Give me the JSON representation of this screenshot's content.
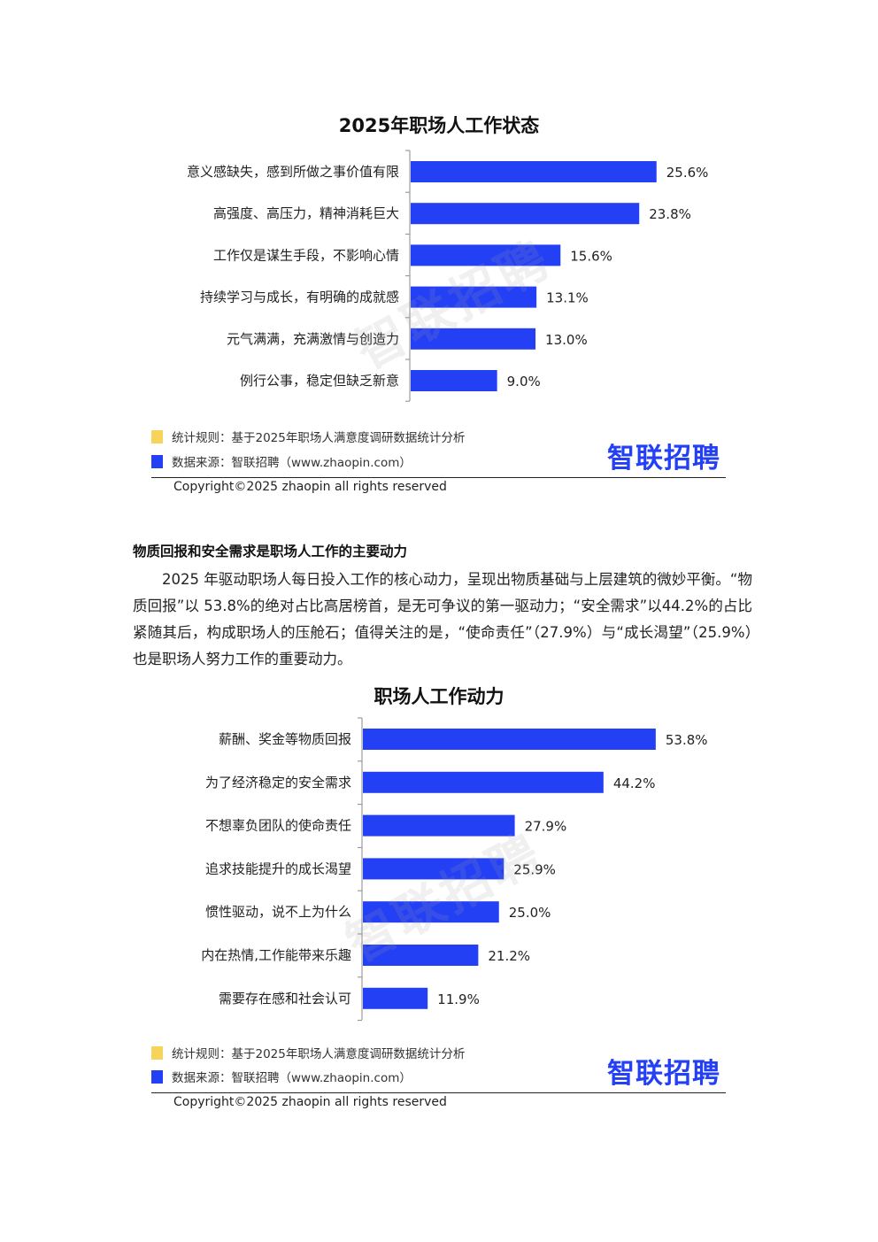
{
  "watermark": "智联招聘",
  "chart_data": [
    {
      "type": "bar",
      "orientation": "horizontal",
      "title": "2025年职场人工作状态",
      "categories": [
        "意义感缺失，感到所做之事价值有限",
        "高强度、高压力，精神消耗巨大",
        "工作仅是谋生手段，不影响心情",
        "持续学习与成长，有明确的成就感",
        "元气满满，充满激情与创造力",
        "例行公事，稳定但缺乏新意"
      ],
      "values": [
        25.6,
        23.8,
        15.6,
        13.1,
        13.0,
        9.0
      ],
      "value_labels": [
        "25.6%",
        "23.8%",
        "15.6%",
        "13.1%",
        "13.0%",
        "9.0%"
      ],
      "xlim": [
        0,
        30
      ],
      "grid": false,
      "bar_color": "#2440f5"
    },
    {
      "type": "bar",
      "orientation": "horizontal",
      "title": "职场人工作动力",
      "categories": [
        "薪酬、奖金等物质回报",
        "为了经济稳定的安全需求",
        "不想辜负团队的使命责任",
        "追求技能提升的成长渴望",
        "惯性驱动，说不上为什么",
        "内在热情,工作能带来乐趣",
        "需要存在感和社会认可"
      ],
      "values": [
        53.8,
        44.2,
        27.9,
        25.9,
        25.0,
        21.2,
        11.9
      ],
      "value_labels": [
        "53.8%",
        "44.2%",
        "27.9%",
        "25.9%",
        "25.0%",
        "21.2%",
        "11.9%"
      ],
      "xlim": [
        0,
        60
      ],
      "grid": false,
      "bar_color": "#2440f5"
    }
  ],
  "footer": {
    "rule": "统计规则：基于2025年职场人满意度调研数据统计分析",
    "source": "数据来源：智联招聘（www.zhaopin.com）",
    "copyright": "Copyright©2025 zhaopin all rights reserved",
    "logo": "智联招聘",
    "legend_colors": {
      "rule": "#f7d35a",
      "source": "#2440f5"
    }
  },
  "section": {
    "heading": "物质回报和安全需求是职场人工作的主要动力",
    "paragraph": "2025 年驱动职场人每日投入工作的核心动力，呈现出物质基础与上层建筑的微妙平衡。“物质回报”以 53.8%的绝对占比高居榜首，是无可争议的第一驱动力；“安全需求”以44.2%的占比紧随其后，构成职场人的压舱石；值得关注的是，“使命责任”（27.9%）与“成长渴望”（25.9%）也是职场人努力工作的重要动力。"
  }
}
